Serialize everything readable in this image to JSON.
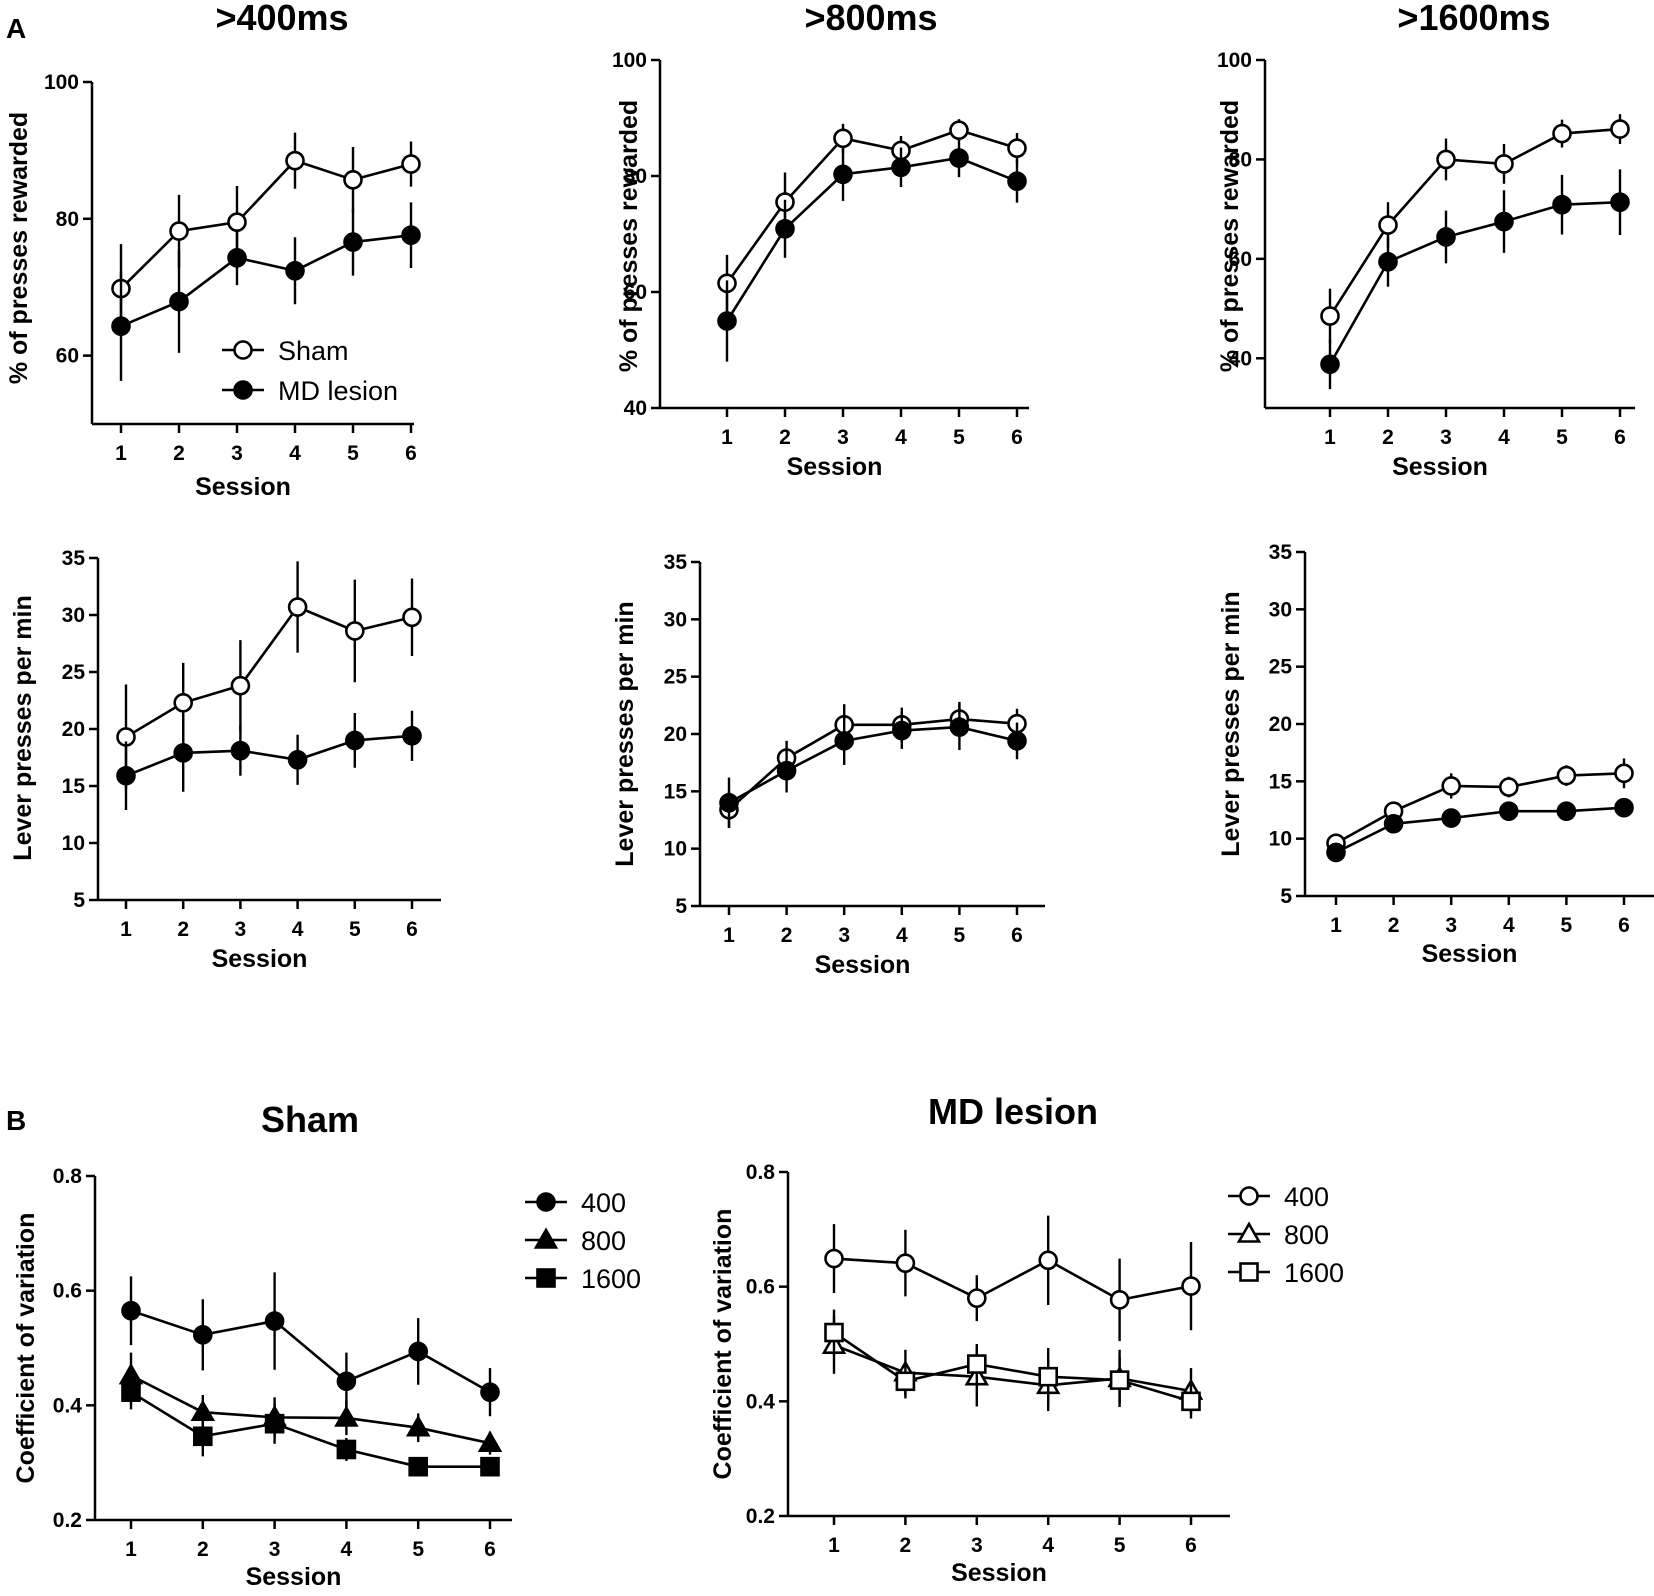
{
  "panel_labels": [
    "A",
    "B"
  ],
  "chart_data": [
    {
      "id": "a1",
      "type": "line",
      "title": ">400ms",
      "xlabel": "Session",
      "ylabel": "% of presses rewarded",
      "categories": [
        1,
        2,
        3,
        4,
        5,
        6
      ],
      "ylim": [
        50,
        100
      ],
      "yticks": [
        60,
        80,
        100
      ],
      "legend": {
        "position": "bottom-right",
        "entries": [
          "Sham",
          "MD lesion"
        ]
      },
      "series": [
        {
          "name": "Sham",
          "marker": "circle-open",
          "values": [
            69.8,
            78.2,
            79.5,
            88.5,
            85.7,
            88.0
          ],
          "err": [
            6.5,
            5.3,
            5.3,
            4.1,
            4.8,
            3.3
          ]
        },
        {
          "name": "MD lesion",
          "marker": "circle-filled",
          "values": [
            64.3,
            67.9,
            74.3,
            72.4,
            76.6,
            77.6
          ],
          "err": [
            8.0,
            7.5,
            4.0,
            4.9,
            4.9,
            4.8
          ]
        }
      ]
    },
    {
      "id": "a2",
      "type": "line",
      "title": ">800ms",
      "xlabel": "Session",
      "ylabel": "% of presses rewarded",
      "categories": [
        1,
        2,
        3,
        4,
        5,
        6
      ],
      "ylim": [
        40,
        100
      ],
      "yticks": [
        40,
        60,
        80,
        100
      ],
      "series": [
        {
          "name": "Sham",
          "marker": "circle-open",
          "values": [
            61.5,
            75.5,
            86.5,
            84.4,
            87.9,
            84.8
          ],
          "err": [
            4.9,
            5.1,
            2.5,
            2.5,
            1.9,
            2.6
          ]
        },
        {
          "name": "MD lesion",
          "marker": "circle-filled",
          "values": [
            55.0,
            70.9,
            80.3,
            81.5,
            83.1,
            79.1
          ],
          "err": [
            7.0,
            5.0,
            4.6,
            3.4,
            3.3,
            3.7
          ]
        }
      ]
    },
    {
      "id": "a3",
      "type": "line",
      "title": ">1600ms",
      "xlabel": "Session",
      "ylabel": "% of presses rewarded",
      "categories": [
        1,
        2,
        3,
        4,
        5,
        6
      ],
      "ylim": [
        30,
        100
      ],
      "yticks": [
        40,
        60,
        80,
        100
      ],
      "series": [
        {
          "name": "Sham",
          "marker": "circle-open",
          "values": [
            48.5,
            66.8,
            80.0,
            79.1,
            85.2,
            86.1
          ],
          "err": [
            5.5,
            4.6,
            4.2,
            4.0,
            2.8,
            3.0
          ]
        },
        {
          "name": "MD lesion",
          "marker": "circle-filled",
          "values": [
            38.8,
            59.4,
            64.4,
            67.5,
            70.9,
            71.4
          ],
          "err": [
            5.0,
            5.0,
            5.3,
            6.3,
            6.0,
            6.6
          ]
        }
      ]
    },
    {
      "id": "a4",
      "type": "line",
      "xlabel": "Session",
      "ylabel": "Lever presses per min",
      "categories": [
        1,
        2,
        3,
        4,
        5,
        6
      ],
      "ylim": [
        5,
        35
      ],
      "yticks": [
        5,
        10,
        15,
        20,
        25,
        30,
        35
      ],
      "series": [
        {
          "name": "Sham",
          "marker": "circle-open",
          "values": [
            19.3,
            22.3,
            23.8,
            30.7,
            28.6,
            29.8
          ],
          "err": [
            4.6,
            3.5,
            4.0,
            4.0,
            4.5,
            3.4
          ]
        },
        {
          "name": "MD lesion",
          "marker": "circle-filled",
          "values": [
            15.9,
            17.9,
            18.1,
            17.3,
            19.0,
            19.4
          ],
          "err": [
            3.0,
            3.4,
            2.2,
            2.2,
            2.4,
            2.2
          ]
        }
      ]
    },
    {
      "id": "a5",
      "type": "line",
      "xlabel": "Session",
      "ylabel": "Lever presses per min",
      "categories": [
        1,
        2,
        3,
        4,
        5,
        6
      ],
      "ylim": [
        5,
        35
      ],
      "yticks": [
        5,
        10,
        15,
        20,
        25,
        30,
        35
      ],
      "series": [
        {
          "name": "Sham",
          "marker": "circle-open",
          "values": [
            13.4,
            17.9,
            20.8,
            20.8,
            21.3,
            20.9
          ],
          "err": [
            1.6,
            1.5,
            1.8,
            1.5,
            1.5,
            1.3
          ]
        },
        {
          "name": "MD lesion",
          "marker": "circle-filled",
          "values": [
            14.0,
            16.8,
            19.4,
            20.3,
            20.6,
            19.4
          ],
          "err": [
            2.2,
            1.9,
            2.1,
            1.6,
            2.0,
            1.6
          ]
        }
      ]
    },
    {
      "id": "a6",
      "type": "line",
      "xlabel": "Session",
      "ylabel": "Lever presses per min",
      "categories": [
        1,
        2,
        3,
        4,
        5,
        6
      ],
      "ylim": [
        5,
        35
      ],
      "yticks": [
        5,
        10,
        15,
        20,
        25,
        30,
        35
      ],
      "series": [
        {
          "name": "Sham",
          "marker": "circle-open",
          "values": [
            9.6,
            12.4,
            14.6,
            14.5,
            15.5,
            15.7
          ],
          "err": [
            0.7,
            0.8,
            1.1,
            0.9,
            0.9,
            1.3
          ]
        },
        {
          "name": "MD lesion",
          "marker": "circle-filled",
          "values": [
            8.8,
            11.3,
            11.8,
            12.4,
            12.4,
            12.7
          ],
          "err": [
            0.5,
            0.6,
            0.6,
            0.8,
            0.7,
            0.7
          ]
        }
      ]
    },
    {
      "id": "b1",
      "type": "line",
      "title": "Sham",
      "xlabel": "Session",
      "ylabel": "Coefficient of variation",
      "categories": [
        1,
        2,
        3,
        4,
        5,
        6
      ],
      "ylim": [
        0.2,
        0.8
      ],
      "yticks": [
        "0.2",
        "0.4",
        "0.6",
        "0.8"
      ],
      "legend": {
        "position": "right",
        "entries": [
          "400",
          "800",
          "1600"
        ]
      },
      "series": [
        {
          "name": "400",
          "marker": "circle-filled",
          "values": [
            0.565,
            0.523,
            0.547,
            0.442,
            0.494,
            0.423
          ],
          "err": [
            0.06,
            0.062,
            0.085,
            0.05,
            0.058,
            0.042
          ]
        },
        {
          "name": "800",
          "marker": "triangle-filled",
          "values": [
            0.452,
            0.388,
            0.379,
            0.378,
            0.361,
            0.334
          ],
          "err": [
            0.04,
            0.03,
            0.035,
            0.03,
            0.025,
            0.02
          ]
        },
        {
          "name": "1600",
          "marker": "square-filled",
          "values": [
            0.423,
            0.346,
            0.368,
            0.323,
            0.293,
            0.293
          ],
          "err": [
            0.03,
            0.035,
            0.035,
            0.02,
            0.01,
            0.01
          ]
        }
      ]
    },
    {
      "id": "b2",
      "type": "line",
      "title": "MD lesion",
      "xlabel": "Session",
      "ylabel": "Coefficient of variation",
      "categories": [
        1,
        2,
        3,
        4,
        5,
        6
      ],
      "ylim": [
        0.2,
        0.8
      ],
      "yticks": [
        "0.2",
        "0.4",
        "0.6",
        "0.8"
      ],
      "legend": {
        "position": "right",
        "entries": [
          "400",
          "800",
          "1600"
        ]
      },
      "series": [
        {
          "name": "400",
          "marker": "circle-open",
          "values": [
            0.649,
            0.641,
            0.58,
            0.646,
            0.577,
            0.601
          ],
          "err": [
            0.06,
            0.058,
            0.04,
            0.078,
            0.072,
            0.077
          ]
        },
        {
          "name": "800",
          "marker": "triangle-open",
          "values": [
            0.498,
            0.45,
            0.443,
            0.428,
            0.44,
            0.418
          ],
          "err": [
            0.05,
            0.04,
            0.052,
            0.045,
            0.05,
            0.04
          ]
        },
        {
          "name": "1600",
          "marker": "square-open",
          "values": [
            0.52,
            0.435,
            0.465,
            0.443,
            0.437,
            0.4
          ],
          "err": [
            0.04,
            0.03,
            0.035,
            0.05,
            0.04,
            0.03
          ]
        }
      ]
    }
  ]
}
